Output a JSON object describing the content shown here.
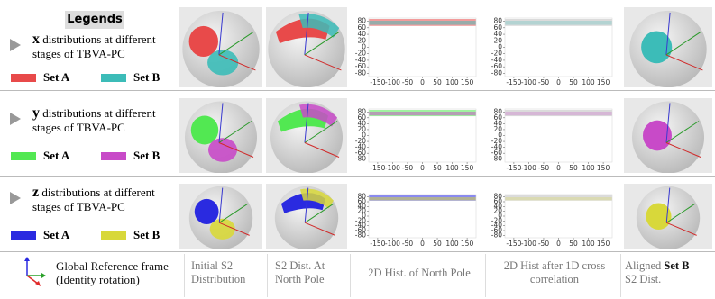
{
  "legends_title": "Legends",
  "rows": [
    {
      "variable": "x",
      "description": "distributions at different stages of TBVA-PC",
      "set_a": {
        "label": "Set A",
        "color": "#e84a4a"
      },
      "set_b": {
        "label": "Set B",
        "color": "#3cbcb8"
      }
    },
    {
      "variable": "y",
      "description": "distributions at different stages of TBVA-PC",
      "set_a": {
        "label": "Set A",
        "color": "#52e852"
      },
      "set_b": {
        "label": "Set B",
        "color": "#c84ac8"
      }
    },
    {
      "variable": "z",
      "description": "distributions at different stages of TBVA-PC",
      "set_a": {
        "label": "Set A",
        "color": "#2a2ae0"
      },
      "set_b": {
        "label": "Set B",
        "color": "#d8d83a"
      }
    }
  ],
  "plot_axes": {
    "xlim": [
      -180,
      180
    ],
    "ylim": [
      -90,
      90
    ],
    "xticks": [
      -150,
      -100,
      -50,
      0,
      50,
      100,
      150
    ],
    "yticks": [
      80,
      60,
      40,
      20,
      0,
      -20,
      -40,
      -60,
      -80
    ]
  },
  "captions": {
    "frame": "Global Reference frame (Identity rotation)",
    "initial": "Initial S2 Distribution",
    "north_pole": "S2 Dist. At North Pole",
    "hist": "2D Hist. of North Pole",
    "hist_cc": "2D Hist after 1D cross correlation",
    "aligned": "Aligned",
    "aligned_set": "Set B",
    "aligned_rest": "S2 Dist."
  }
}
